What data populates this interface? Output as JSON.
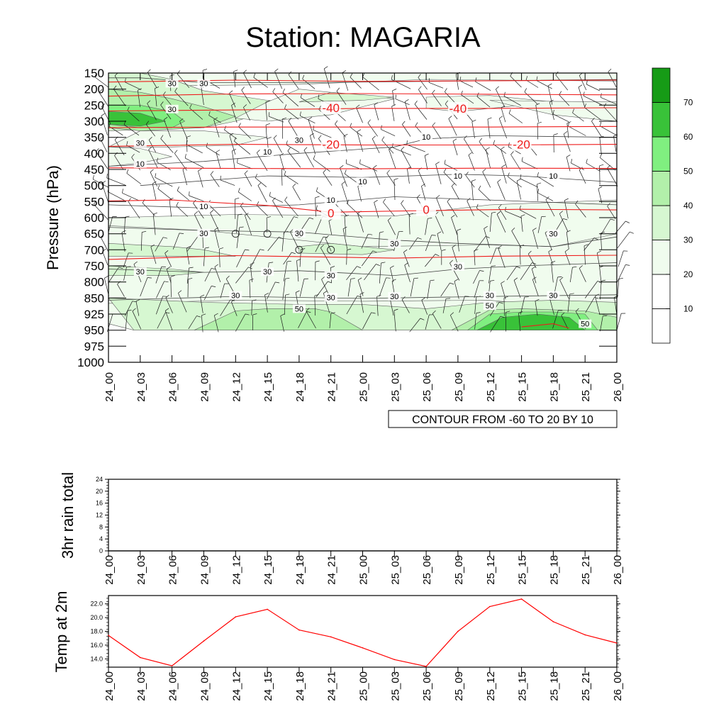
{
  "title": "Station: MAGARIA",
  "time_labels": [
    "24_00",
    "24_03",
    "24_06",
    "24_09",
    "24_12",
    "24_15",
    "24_18",
    "24_21",
    "25_00",
    "25_03",
    "25_06",
    "25_09",
    "25_12",
    "25_15",
    "25_18",
    "25_21",
    "26_00"
  ],
  "chart_data": [
    {
      "type": "heatmap",
      "name": "time-pressure cross section",
      "ylabel": "Pressure (hPa)",
      "pressure_levels": [
        150,
        200,
        250,
        300,
        350,
        400,
        450,
        500,
        550,
        600,
        650,
        700,
        750,
        800,
        850,
        925,
        950,
        975,
        1000
      ],
      "contour_info": "CONTOUR FROM -60 TO 20 BY 10",
      "shading_colorbar": {
        "labels": [
          "10",
          "20",
          "30",
          "40",
          "50",
          "60",
          "70"
        ],
        "colors": [
          "#ffffff",
          "#ffffff",
          "#f0fcee",
          "#d6f7d1",
          "#b2f0aa",
          "#80ef80",
          "#39c239",
          "#169b16"
        ]
      },
      "temperature_contour_labels": [
        {
          "text": "-40",
          "time": "24_21",
          "p": 258
        },
        {
          "text": "-40",
          "time": "25_09",
          "p": 260
        },
        {
          "text": "-20",
          "time": "24_21",
          "p": 372
        },
        {
          "text": "-20",
          "time": "25_15",
          "p": 372
        },
        {
          "text": "0",
          "time": "24_21",
          "p": 586
        },
        {
          "text": "0",
          "time": "25_06",
          "p": 575
        }
      ],
      "humidity_contour_labels": [
        {
          "text": "30",
          "time": "24_06",
          "p": 182
        },
        {
          "text": "30",
          "time": "24_09",
          "p": 182
        },
        {
          "text": "30",
          "time": "24_06",
          "p": 262
        },
        {
          "text": "30",
          "time": "24_03",
          "p": 367
        },
        {
          "text": "30",
          "time": "24_18",
          "p": 358
        },
        {
          "text": "10",
          "time": "24_03",
          "p": 432
        },
        {
          "text": "10",
          "time": "24_15",
          "p": 395
        },
        {
          "text": "10",
          "time": "25_06",
          "p": 348
        },
        {
          "text": "10",
          "time": "25_00",
          "p": 488
        },
        {
          "text": "10",
          "time": "25_09",
          "p": 470
        },
        {
          "text": "10",
          "time": "25_18",
          "p": 470
        },
        {
          "text": "10",
          "time": "24_09",
          "p": 565
        },
        {
          "text": "10",
          "time": "24_21",
          "p": 545
        },
        {
          "text": "30",
          "time": "24_09",
          "p": 648
        },
        {
          "text": "30",
          "time": "24_18",
          "p": 648
        },
        {
          "text": "30",
          "time": "25_03",
          "p": 680
        },
        {
          "text": "30",
          "time": "25_18",
          "p": 650
        },
        {
          "text": "30",
          "time": "24_03",
          "p": 768
        },
        {
          "text": "30",
          "time": "24_15",
          "p": 768
        },
        {
          "text": "30",
          "time": "24_21",
          "p": 780
        },
        {
          "text": "30",
          "time": "25_09",
          "p": 752
        },
        {
          "text": "30",
          "time": "24_12",
          "p": 842
        },
        {
          "text": "30",
          "time": "24_21",
          "p": 848
        },
        {
          "text": "30",
          "time": "25_03",
          "p": 845
        },
        {
          "text": "30",
          "time": "25_12",
          "p": 842
        },
        {
          "text": "30",
          "time": "25_18",
          "p": 842
        },
        {
          "text": "50",
          "time": "24_18",
          "p": 900
        },
        {
          "text": "50",
          "time": "25_12",
          "p": 886
        },
        {
          "text": "50",
          "time": "25_21",
          "p": 940
        }
      ],
      "markers": [
        {
          "time": "24_12",
          "p": 650
        },
        {
          "time": "24_15",
          "p": 650
        },
        {
          "time": "24_18",
          "p": 650
        },
        {
          "time": "24_18",
          "p": 700
        },
        {
          "time": "24_21",
          "p": 700
        }
      ]
    },
    {
      "type": "line",
      "name": "3hr rain total",
      "ylabel": "3hr rain total",
      "ylim": [
        0,
        24
      ],
      "yticks": [
        "0",
        "4",
        "8",
        "12",
        "16",
        "20",
        "24"
      ],
      "values": [
        0,
        0,
        0,
        0,
        0,
        0,
        0,
        0,
        0,
        0,
        0,
        0,
        0,
        0,
        0,
        0,
        0
      ]
    },
    {
      "type": "line",
      "name": "Temp at 2m",
      "ylabel": "Temp at 2m",
      "ylim": [
        12.8,
        23.2
      ],
      "yticks": [
        "14.0",
        "16.0",
        "18.0",
        "20.0",
        "22.0"
      ],
      "line_color": "#ff0000",
      "values": [
        17.4,
        14.2,
        13.0,
        16.6,
        20.1,
        21.2,
        18.2,
        17.2,
        15.6,
        13.9,
        12.9,
        18.0,
        21.6,
        22.7,
        19.4,
        17.5,
        16.3
      ]
    }
  ]
}
